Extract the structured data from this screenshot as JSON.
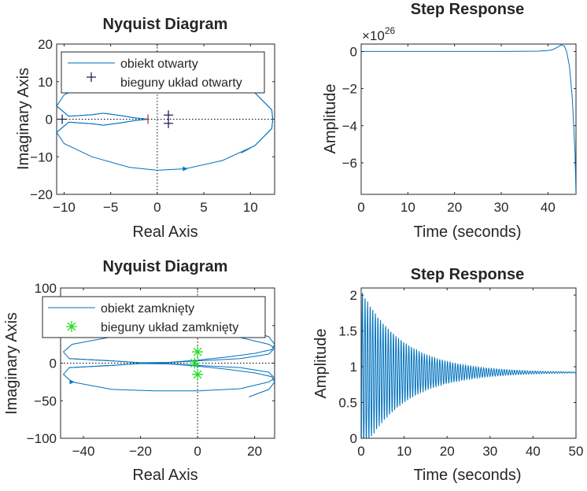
{
  "chart_data": [
    {
      "type": "nyquist",
      "title": "Nyquist Diagram",
      "xlabel": "Real Axis",
      "ylabel": "Imaginary Axis",
      "xlim": [
        -10.8,
        12.6
      ],
      "ylim": [
        -20,
        20
      ],
      "xticks": [
        -10,
        -5,
        0,
        5,
        10
      ],
      "yticks": [
        -20,
        -10,
        0,
        10,
        20
      ],
      "legend": {
        "position": "top",
        "entries": [
          "obiekt otwarty",
          "bieguny układ otwarty"
        ]
      },
      "series": [
        {
          "name": "obiekt otwarty",
          "style": "line",
          "color": "#0072bd",
          "points": [
            [
              -10.8,
              3.5
            ],
            [
              -9.5,
              0.8
            ],
            [
              -7,
              1.2
            ],
            [
              -5.8,
              1.6
            ],
            [
              -4,
              1.0
            ],
            [
              -2.5,
              0.4
            ],
            [
              -1,
              0
            ],
            [
              -2.5,
              -0.4
            ],
            [
              -4,
              -1.0
            ],
            [
              -5.8,
              -1.6
            ],
            [
              -7,
              -1.2
            ],
            [
              -9.5,
              -0.8
            ],
            [
              -10.8,
              -3.5
            ],
            [
              -10,
              -6.5
            ],
            [
              -7,
              -10
            ],
            [
              -3,
              -12.8
            ],
            [
              0,
              -13.6
            ],
            [
              3,
              -13.2
            ],
            [
              7,
              -11
            ],
            [
              10.5,
              -7
            ],
            [
              12.3,
              -2.5
            ],
            [
              12.4,
              0
            ],
            [
              12.3,
              2.5
            ],
            [
              10.5,
              7
            ],
            [
              9,
              9
            ]
          ]
        },
        {
          "name": "bieguny układ otwarty",
          "style": "marker",
          "marker": "+",
          "color": "#1f1f5a",
          "points": [
            [
              -10.2,
              0
            ],
            [
              1.2,
              1.1
            ],
            [
              1.2,
              -1.1
            ]
          ]
        }
      ],
      "annotations": [
        {
          "type": "critical-point",
          "x": -1,
          "y": 0,
          "color": "#d62728"
        }
      ]
    },
    {
      "type": "line",
      "title": "Step Response",
      "xlabel": "Time (seconds)",
      "ylabel": "Amplitude",
      "exponent_label": "×10",
      "exponent": "26",
      "xlim": [
        0,
        46
      ],
      "ylim": [
        -7.7,
        0.4
      ],
      "xticks": [
        0,
        10,
        20,
        30,
        40
      ],
      "yticks": [
        0,
        -2,
        -4,
        -6
      ],
      "series": [
        {
          "color": "#0072bd",
          "x": [
            0,
            30,
            38,
            40,
            41,
            42,
            42.8,
            43.5,
            44,
            44.6,
            45.2,
            45.8,
            46
          ],
          "y": [
            0,
            0,
            0.02,
            0.05,
            0.1,
            0.22,
            0.35,
            0.3,
            0,
            -0.8,
            -2.5,
            -5.5,
            -7.7
          ]
        }
      ]
    },
    {
      "type": "nyquist",
      "title": "Nyquist Diagram",
      "xlabel": "Real Axis",
      "ylabel": "Imaginary Axis",
      "xlim": [
        -48,
        27
      ],
      "ylim": [
        -100,
        100
      ],
      "xticks": [
        -40,
        -20,
        0,
        20
      ],
      "yticks": [
        -100,
        -50,
        0,
        50,
        100
      ],
      "legend": {
        "position": "top",
        "entries": [
          "obiekt zamknięty",
          "bieguny układ zamknięty"
        ]
      },
      "series": [
        {
          "name": "obiekt zamknięty",
          "style": "line",
          "color": "#0072bd",
          "points": [
            [
              -45,
              6
            ],
            [
              -30,
              3
            ],
            [
              -20,
              0.5
            ],
            [
              -10,
              1
            ],
            [
              0,
              4
            ],
            [
              10,
              8
            ],
            [
              20,
              13
            ],
            [
              26,
              18
            ],
            [
              27,
              25
            ],
            [
              25,
              35
            ],
            [
              20,
              42
            ],
            [
              18,
              45
            ],
            [
              20,
              42
            ],
            [
              25,
              35
            ],
            [
              27,
              25
            ],
            [
              26,
              18
            ],
            [
              20,
              13
            ],
            [
              10,
              8
            ],
            [
              0,
              4
            ],
            [
              -10,
              1
            ],
            [
              -20,
              -0.5
            ],
            [
              -30,
              -3
            ],
            [
              -45,
              -6
            ],
            [
              -47,
              -15
            ],
            [
              -44,
              -25
            ],
            [
              -30,
              -35
            ],
            [
              -15,
              -37
            ],
            [
              0,
              -37
            ],
            [
              15,
              -34
            ],
            [
              25,
              -25
            ],
            [
              27,
              -20
            ],
            [
              25,
              -12
            ],
            [
              15,
              -6
            ],
            [
              0,
              -3
            ],
            [
              -14,
              0
            ]
          ]
        },
        {
          "name": "bieguny układ zamknięty",
          "style": "marker",
          "marker": "*",
          "color": "#22dd22",
          "points": [
            [
              0,
              15
            ],
            [
              -1,
              0
            ],
            [
              0,
              -15
            ]
          ]
        }
      ]
    },
    {
      "type": "line",
      "title": "Step Response",
      "xlabel": "Time (seconds)",
      "ylabel": "Amplitude",
      "xlim": [
        0,
        50
      ],
      "ylim": [
        0,
        2.1
      ],
      "xticks": [
        0,
        10,
        20,
        30,
        40,
        50
      ],
      "yticks": [
        0,
        0.5,
        1,
        1.5,
        2
      ],
      "series": [
        {
          "color": "#0072bd",
          "function": "damped-oscillation",
          "final": 0.92,
          "initial_amplitude": 1.15,
          "decay": 0.1,
          "period": 0.6
        }
      ]
    }
  ]
}
